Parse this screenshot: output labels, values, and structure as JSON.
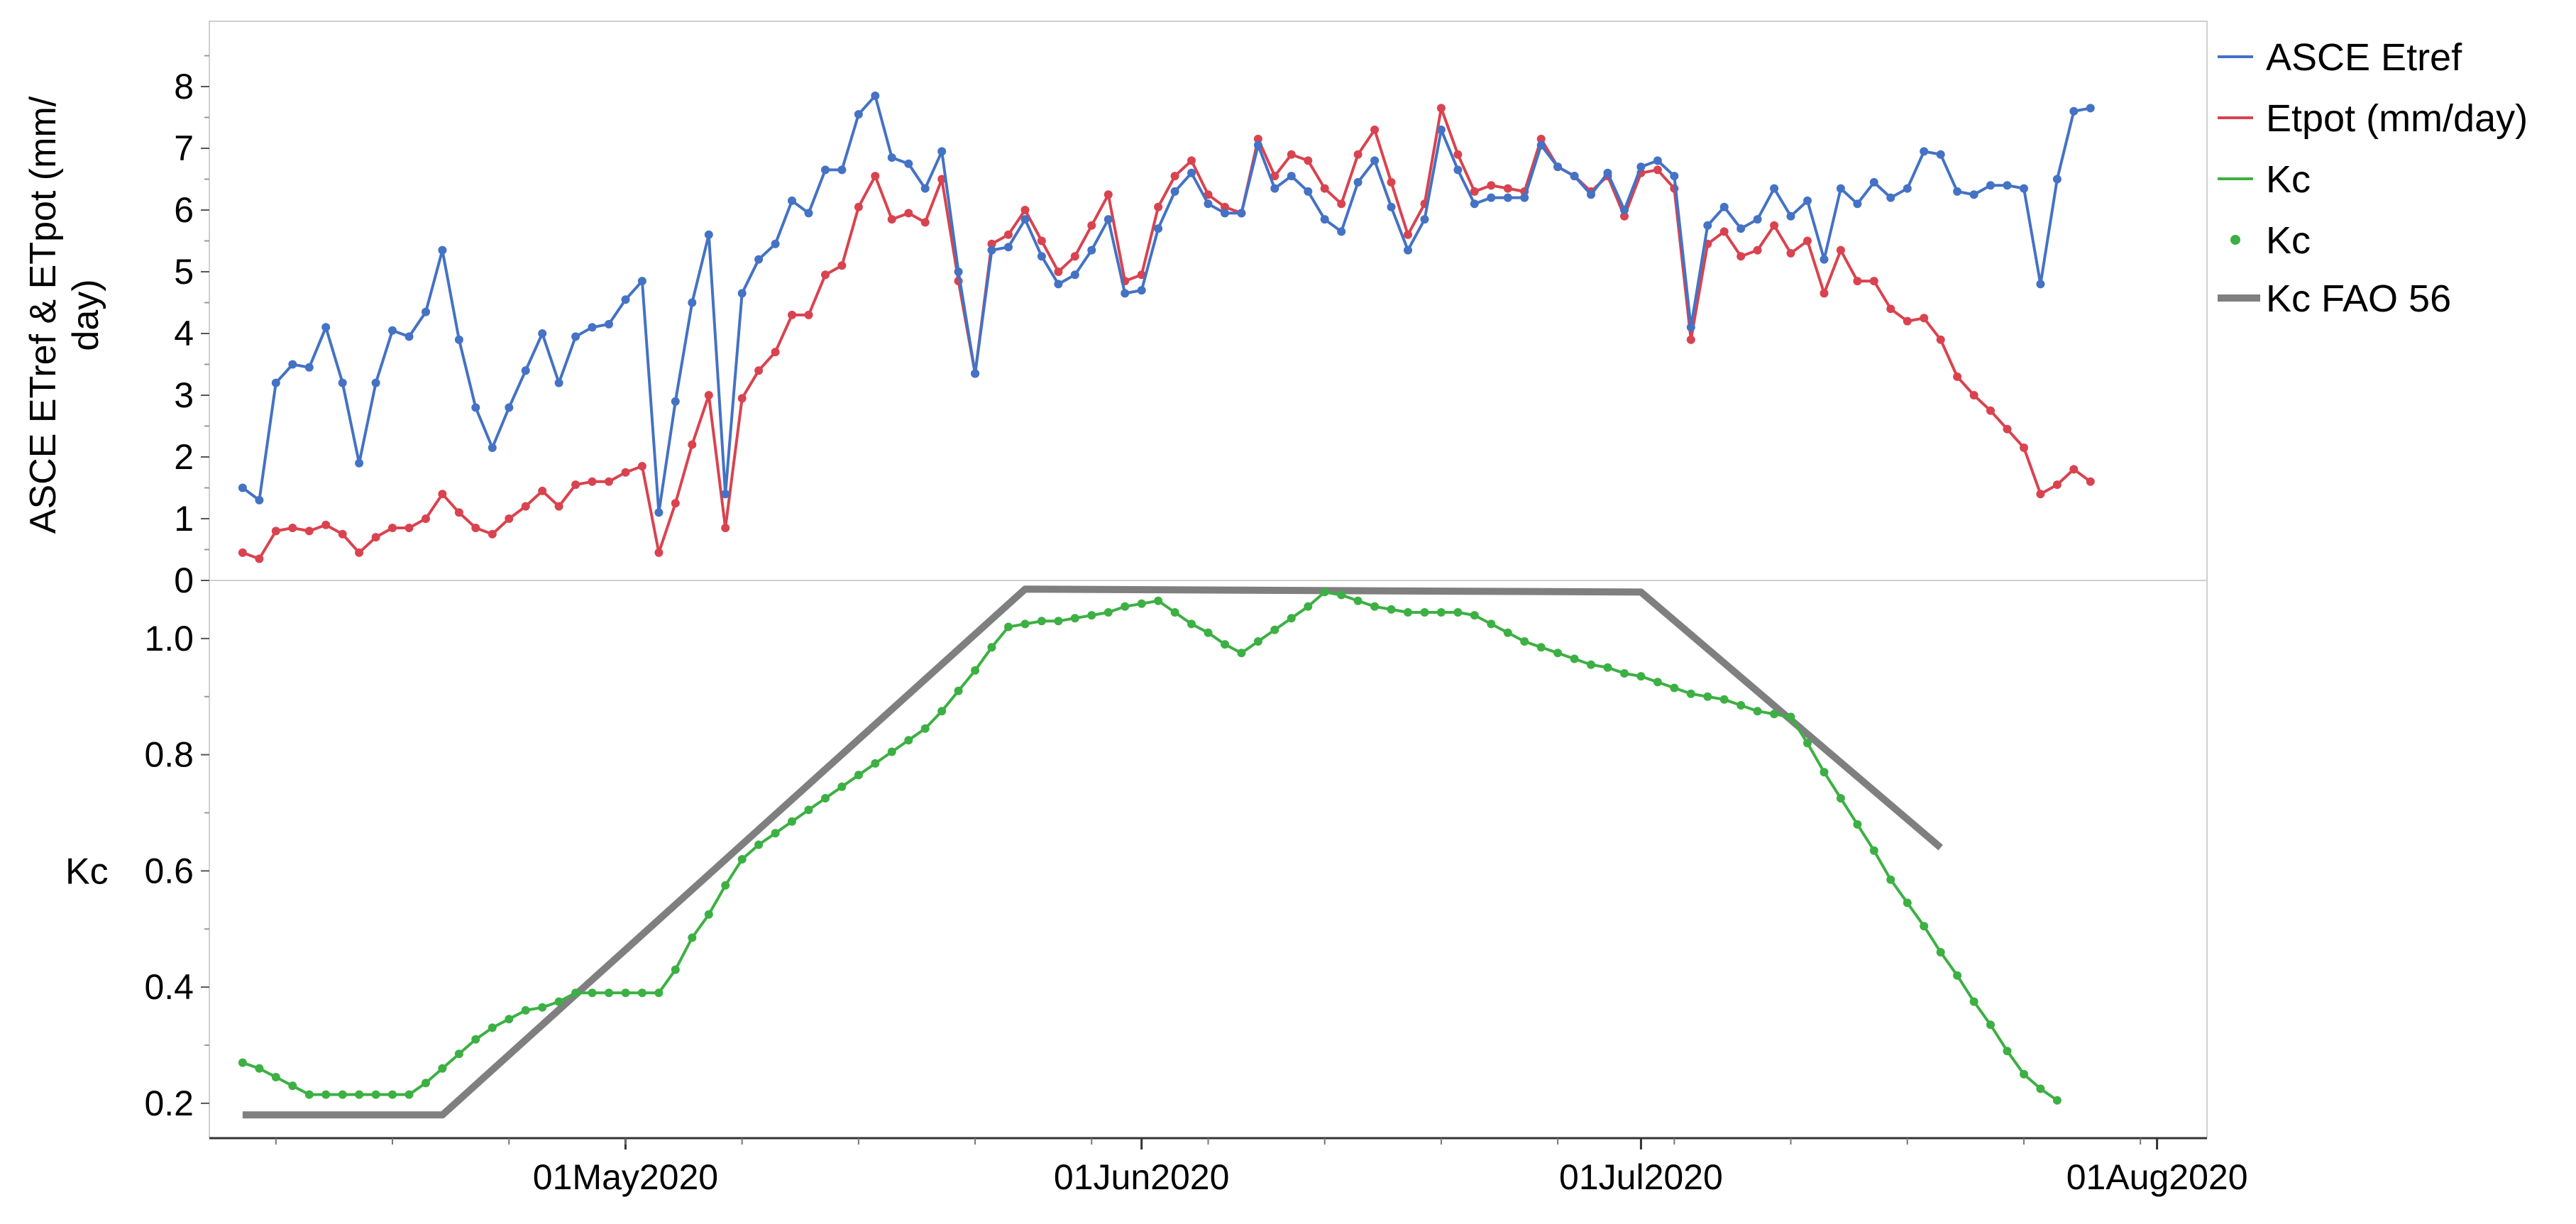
{
  "chart_data": [
    {
      "type": "line",
      "panel": "top",
      "ylabel": "ASCE ETref & ETpot (mm/ day)",
      "ylim": [
        0,
        9
      ],
      "yticks": [
        0,
        1,
        2,
        3,
        4,
        5,
        6,
        7,
        8
      ],
      "xlim": [
        "2020-04-06",
        "2020-08-04"
      ],
      "grid": false,
      "legend_position": "right",
      "series": [
        {
          "name": "ASCE Etref",
          "color": "#4472c4",
          "x_start": "2020-04-08",
          "values": [
            1.5,
            1.3,
            3.2,
            3.5,
            3.45,
            4.1,
            3.2,
            1.9,
            3.2,
            4.05,
            3.95,
            4.35,
            5.35,
            3.9,
            2.8,
            2.15,
            2.8,
            3.4,
            4.0,
            3.2,
            3.95,
            4.1,
            4.15,
            4.55,
            4.85,
            1.1,
            2.9,
            4.5,
            5.6,
            1.4,
            4.65,
            5.2,
            5.45,
            6.15,
            5.95,
            6.65,
            6.65,
            7.55,
            7.85,
            6.85,
            6.75,
            6.35,
            6.95,
            5.0,
            3.35,
            5.35,
            5.4,
            5.85,
            5.25,
            4.8,
            4.95,
            5.35,
            5.85,
            4.65,
            4.7,
            5.7,
            6.3,
            6.6,
            6.1,
            5.95,
            5.95,
            7.05,
            6.35,
            6.55,
            6.3,
            5.85,
            5.65,
            6.45,
            6.8,
            6.05,
            5.35,
            5.85,
            7.3,
            6.65,
            6.1,
            6.2,
            6.2,
            6.2,
            7.05,
            6.7,
            6.55,
            6.25,
            6.6,
            6.0,
            6.7,
            6.8,
            6.55,
            4.1,
            5.75,
            6.05,
            5.7,
            5.85,
            6.35,
            5.9,
            6.15,
            5.2,
            6.35,
            6.1,
            6.45,
            6.2,
            6.35,
            6.95,
            6.9,
            6.3,
            6.25,
            6.4,
            6.4,
            6.35,
            4.8,
            6.5,
            7.6,
            7.65
          ]
        },
        {
          "name": "Etpot (mm/day)",
          "color": "#d9434f",
          "x_start": "2020-04-08",
          "values": [
            0.45,
            0.35,
            0.8,
            0.85,
            0.8,
            0.9,
            0.75,
            0.45,
            0.7,
            0.85,
            0.85,
            1.0,
            1.4,
            1.1,
            0.85,
            0.75,
            1.0,
            1.2,
            1.45,
            1.2,
            1.55,
            1.6,
            1.6,
            1.75,
            1.85,
            0.45,
            1.25,
            2.2,
            3.0,
            0.85,
            2.95,
            3.4,
            3.7,
            4.3,
            4.3,
            4.95,
            5.1,
            6.05,
            6.55,
            5.85,
            5.95,
            5.8,
            6.5,
            4.85,
            3.35,
            5.45,
            5.6,
            6.0,
            5.5,
            5.0,
            5.25,
            5.75,
            6.25,
            4.85,
            4.95,
            6.05,
            6.55,
            6.8,
            6.25,
            6.05,
            5.95,
            7.15,
            6.55,
            6.9,
            6.8,
            6.35,
            6.1,
            6.9,
            7.3,
            6.45,
            5.6,
            6.1,
            7.65,
            6.9,
            6.3,
            6.4,
            6.35,
            6.3,
            7.15,
            6.7,
            6.55,
            6.3,
            6.55,
            5.9,
            6.6,
            6.65,
            6.35,
            3.9,
            5.45,
            5.65,
            5.25,
            5.35,
            5.75,
            5.3,
            5.5,
            4.65,
            5.35,
            4.85,
            4.85,
            4.4,
            4.2,
            4.25,
            3.9,
            3.3,
            3.0,
            2.75,
            2.45,
            2.15,
            1.4,
            1.55,
            1.8,
            1.6
          ]
        }
      ]
    },
    {
      "type": "line",
      "panel": "bottom",
      "ylabel": "Kc",
      "ylim": [
        0.14,
        1.1
      ],
      "yticks": [
        0.2,
        0.4,
        0.6,
        0.8,
        1.0
      ],
      "ytick_labels": [
        "0.2",
        "0.4",
        "0.6",
        "0.8",
        "1.0"
      ],
      "xlim": [
        "2020-04-06",
        "2020-08-04"
      ],
      "xticks": [
        "2020-05-01",
        "2020-06-01",
        "2020-07-01",
        "2020-08-01"
      ],
      "xtick_labels": [
        "01May2020",
        "01Jun2020",
        "01Jul2020",
        "01Aug2020"
      ],
      "grid": false,
      "series": [
        {
          "name": "Kc",
          "style": "line",
          "color": "#3cb043",
          "x_start": "2020-04-08",
          "values": [
            0.27,
            0.26,
            0.245,
            0.23,
            0.215,
            0.215,
            0.215,
            0.215,
            0.215,
            0.215,
            0.215,
            0.235,
            0.26,
            0.285,
            0.31,
            0.33,
            0.345,
            0.36,
            0.365,
            0.375,
            0.39,
            0.39,
            0.39,
            0.39,
            0.39,
            0.39,
            0.43,
            0.485,
            0.525,
            0.575,
            0.62,
            0.645,
            0.665,
            0.685,
            0.705,
            0.725,
            0.745,
            0.765,
            0.785,
            0.805,
            0.825,
            0.845,
            0.875,
            0.91,
            0.945,
            0.985,
            1.02,
            1.025,
            1.03,
            1.03,
            1.035,
            1.04,
            1.045,
            1.055,
            1.06,
            1.065,
            1.045,
            1.025,
            1.01,
            0.99,
            0.975,
            0.995,
            1.015,
            1.035,
            1.055,
            1.08,
            1.075,
            1.065,
            1.055,
            1.05,
            1.045,
            1.045,
            1.045,
            1.045,
            1.04,
            1.025,
            1.01,
            0.995,
            0.985,
            0.975,
            0.965,
            0.955,
            0.95,
            0.94,
            0.935,
            0.925,
            0.915,
            0.905,
            0.9,
            0.895,
            0.885,
            0.875,
            0.87,
            0.865,
            0.82,
            0.77,
            0.725,
            0.68,
            0.635,
            0.585,
            0.545,
            0.505,
            0.46,
            0.42,
            0.375,
            0.335,
            0.29,
            0.25,
            0.225,
            0.205
          ]
        },
        {
          "name": "Kc",
          "style": "markers",
          "color": "#3cb043"
        },
        {
          "name": "Kc FAO 56",
          "style": "thick-line",
          "color": "#7f7f7f",
          "x": [
            "2020-04-08",
            "2020-04-20",
            "2020-05-25",
            "2020-07-01",
            "2020-07-19"
          ],
          "values": [
            0.18,
            0.18,
            1.085,
            1.08,
            0.64
          ]
        }
      ]
    }
  ]
}
